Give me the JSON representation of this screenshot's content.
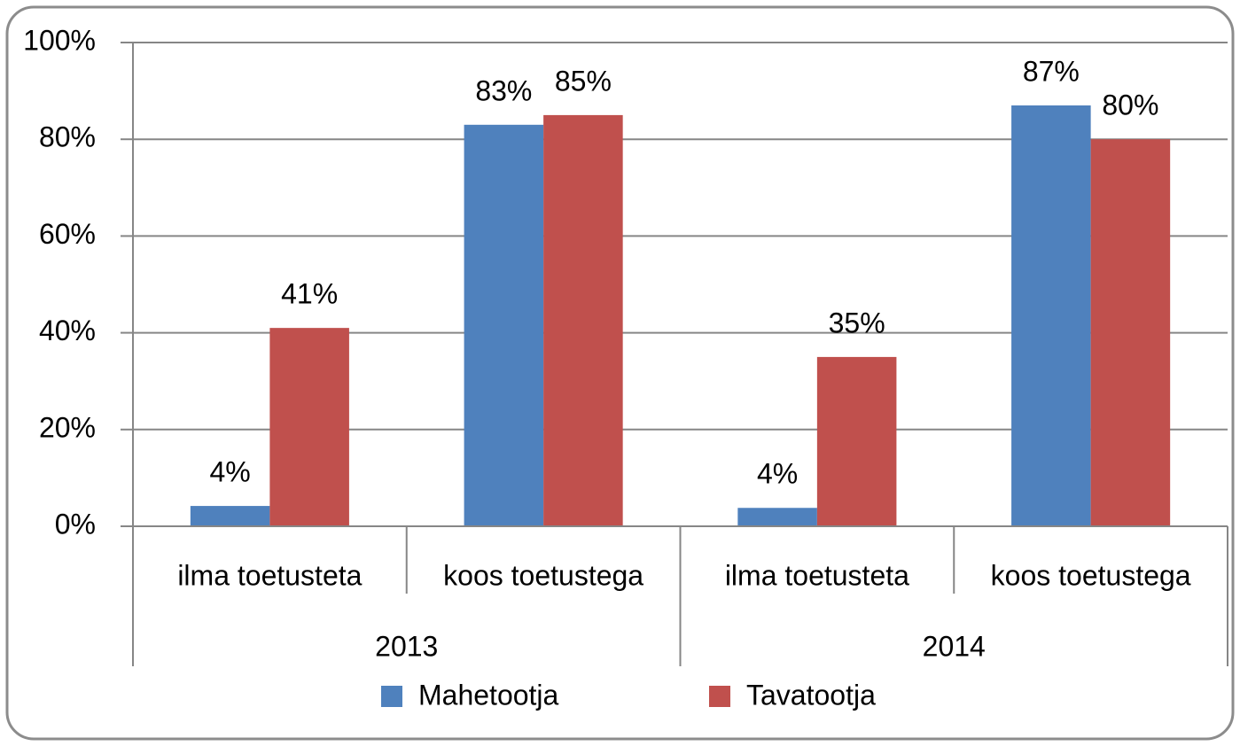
{
  "chart_data": {
    "type": "bar",
    "categories": [
      "ilma toetusteta",
      "koos toetustega",
      "ilma toetusteta",
      "koos toetustega"
    ],
    "category_groups": [
      "2013",
      "2014"
    ],
    "series": [
      {
        "name": "Mahetootja",
        "color": "#4f81bd",
        "values": [
          4.2,
          83,
          3.8,
          87
        ],
        "value_labels": [
          "4%",
          "83%",
          "4%",
          "87%"
        ]
      },
      {
        "name": "Tavatootja",
        "color": "#c0504d",
        "values": [
          41,
          85,
          35,
          80
        ],
        "value_labels": [
          "41%",
          "85%",
          "35%",
          "80%"
        ]
      }
    ],
    "ylim": [
      0,
      100
    ],
    "yticks": [
      {
        "value": 0,
        "label": "0%"
      },
      {
        "value": 20,
        "label": "20%"
      },
      {
        "value": 40,
        "label": "40%"
      },
      {
        "value": 60,
        "label": "60%"
      },
      {
        "value": 80,
        "label": "80%"
      },
      {
        "value": 100,
        "label": "100%"
      }
    ],
    "grid": true,
    "legend": "bottom"
  }
}
